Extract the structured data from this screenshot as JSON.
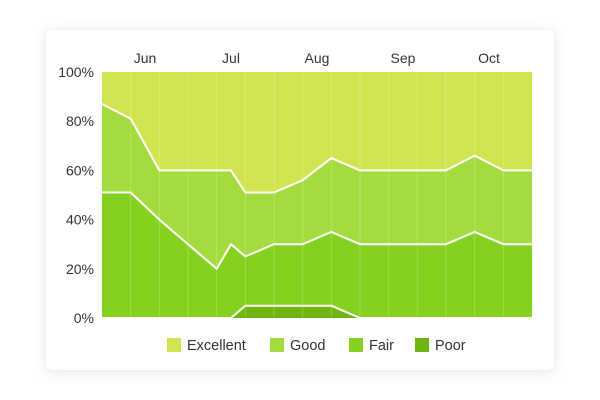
{
  "chart_data": {
    "type": "area",
    "stacked": true,
    "normalized": true,
    "x_labels": [
      "Jun",
      "Jul",
      "Aug",
      "Sep",
      "Oct"
    ],
    "x_label_positions": [
      1.5,
      4.5,
      7.5,
      10.5,
      13.5
    ],
    "y_ticks": [
      "0%",
      "20%",
      "40%",
      "60%",
      "80%",
      "100%"
    ],
    "ylim": [
      0,
      100
    ],
    "xlim": [
      0,
      15
    ],
    "legend_position": "bottom",
    "grid": "vertical",
    "series": [
      {
        "name": "Poor",
        "color": "#6cb80f",
        "x": [
          0,
          1,
          2,
          3,
          4,
          4.5,
          5,
          6,
          7,
          8,
          9,
          10,
          11,
          12,
          13,
          14,
          15
        ],
        "values": [
          0,
          0,
          0,
          0,
          0,
          0,
          5,
          5,
          5,
          5,
          0,
          0,
          0,
          0,
          0,
          0,
          0
        ]
      },
      {
        "name": "Fair",
        "color": "#85d11f",
        "x": [
          0,
          1,
          2,
          3,
          4,
          4.5,
          5,
          6,
          7,
          8,
          9,
          10,
          11,
          12,
          13,
          14,
          15
        ],
        "values": [
          51,
          51,
          40,
          30,
          20,
          30,
          20,
          25,
          25,
          30,
          30,
          30,
          30,
          30,
          35,
          30,
          30
        ]
      },
      {
        "name": "Good",
        "color": "#a4db3e",
        "x": [
          0,
          1,
          2,
          3,
          4,
          4.5,
          5,
          6,
          7,
          8,
          9,
          10,
          11,
          12,
          13,
          14,
          15
        ],
        "values": [
          36,
          30,
          20,
          30,
          40,
          30,
          26,
          21,
          26,
          30,
          30,
          30,
          30,
          30,
          31,
          30,
          30
        ]
      },
      {
        "name": "Excellent",
        "color": "#cfe44f",
        "x": [
          0,
          1,
          2,
          3,
          4,
          4.5,
          5,
          6,
          7,
          8,
          9,
          10,
          11,
          12,
          13,
          14,
          15
        ],
        "values": [
          13,
          19,
          40,
          40,
          40,
          40,
          49,
          49,
          44,
          35,
          40,
          40,
          40,
          40,
          34,
          40,
          40
        ]
      }
    ],
    "legend_order": [
      "Excellent",
      "Good",
      "Fair",
      "Poor"
    ]
  }
}
